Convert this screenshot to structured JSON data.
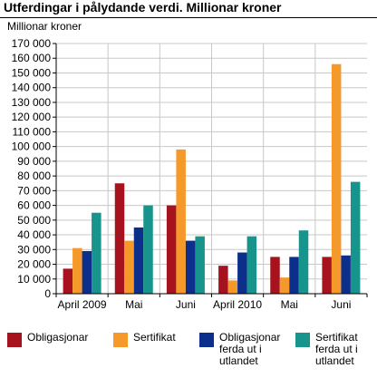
{
  "title": "Utferdingar i pålydande verdi. Millionar kroner",
  "chart_data": {
    "type": "bar",
    "ylabel": "Millionar kroner",
    "ylim": [
      0,
      170000
    ],
    "ytick_step": 10000,
    "ytick_labels": [
      "0",
      "10 000",
      "20 000",
      "30 000",
      "40 000",
      "50 000",
      "60 000",
      "70 000",
      "80 000",
      "90 000",
      "100 000",
      "110 000",
      "120 000",
      "130 000",
      "140 000",
      "150 000",
      "160 000",
      "170 000"
    ],
    "grid": true,
    "categories": [
      "April 2009",
      "Mai",
      "Juni",
      "April 2010",
      "Mai",
      "Juni"
    ],
    "series": [
      {
        "name": "Obligasjonar",
        "color": "#a6131e",
        "values": [
          17000,
          75000,
          60000,
          19000,
          25000,
          25000
        ]
      },
      {
        "name": "Sertifikat",
        "color": "#f59a2a",
        "values": [
          31000,
          36000,
          98000,
          9000,
          11000,
          156000
        ]
      },
      {
        "name": "Obligasjonar ferda ut i utlandet",
        "color": "#0d2f8c",
        "values": [
          29000,
          45000,
          36000,
          28000,
          25000,
          26000
        ]
      },
      {
        "name": "Sertifikat ferda ut i utlandet",
        "color": "#17958d",
        "values": [
          55000,
          60000,
          39000,
          39000,
          43000,
          76000
        ]
      }
    ],
    "legend_position": "bottom"
  }
}
